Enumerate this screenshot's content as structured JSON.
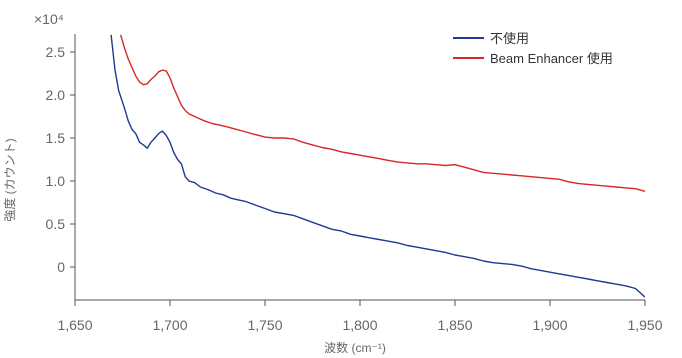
{
  "chart_data": {
    "type": "line",
    "title": "",
    "xlabel": "波数 (cm⁻¹)",
    "ylabel": "強度 (カウント)",
    "y_multiplier": "×10⁴",
    "xlim": [
      1650,
      1950
    ],
    "ylim": [
      -0.3,
      2.7
    ],
    "x_ticks": [
      1650,
      1700,
      1750,
      1800,
      1850,
      1900,
      1950
    ],
    "x_tick_labels": [
      "1,650",
      "1,700",
      "1,750",
      "1,800",
      "1,850",
      "1,900",
      "1,950"
    ],
    "y_ticks": [
      0,
      0.5,
      1.0,
      1.5,
      2.0,
      2.5
    ],
    "y_tick_labels": [
      "0",
      "0.5",
      "1.0",
      "1.5",
      "2.0",
      "2.5"
    ],
    "legend_position": "top-right",
    "grid": false,
    "series": [
      {
        "name": "不使用",
        "color": "#1f3a93",
        "points": [
          [
            1669,
            2.7
          ],
          [
            1671,
            2.3
          ],
          [
            1673,
            2.05
          ],
          [
            1676,
            1.85
          ],
          [
            1678,
            1.7
          ],
          [
            1680,
            1.6
          ],
          [
            1682,
            1.55
          ],
          [
            1684,
            1.45
          ],
          [
            1686,
            1.42
          ],
          [
            1688,
            1.38
          ],
          [
            1690,
            1.45
          ],
          [
            1692,
            1.5
          ],
          [
            1694,
            1.55
          ],
          [
            1696,
            1.58
          ],
          [
            1698,
            1.53
          ],
          [
            1700,
            1.45
          ],
          [
            1702,
            1.33
          ],
          [
            1704,
            1.25
          ],
          [
            1706,
            1.2
          ],
          [
            1708,
            1.05
          ],
          [
            1710,
            1.0
          ],
          [
            1713,
            0.98
          ],
          [
            1716,
            0.93
          ],
          [
            1720,
            0.9
          ],
          [
            1724,
            0.86
          ],
          [
            1728,
            0.84
          ],
          [
            1732,
            0.8
          ],
          [
            1736,
            0.78
          ],
          [
            1740,
            0.76
          ],
          [
            1745,
            0.72
          ],
          [
            1750,
            0.68
          ],
          [
            1755,
            0.64
          ],
          [
            1760,
            0.62
          ],
          [
            1765,
            0.6
          ],
          [
            1770,
            0.56
          ],
          [
            1775,
            0.52
          ],
          [
            1780,
            0.48
          ],
          [
            1785,
            0.44
          ],
          [
            1790,
            0.42
          ],
          [
            1795,
            0.38
          ],
          [
            1800,
            0.36
          ],
          [
            1805,
            0.34
          ],
          [
            1810,
            0.32
          ],
          [
            1815,
            0.3
          ],
          [
            1820,
            0.28
          ],
          [
            1825,
            0.25
          ],
          [
            1830,
            0.23
          ],
          [
            1835,
            0.21
          ],
          [
            1840,
            0.19
          ],
          [
            1845,
            0.17
          ],
          [
            1850,
            0.14
          ],
          [
            1855,
            0.12
          ],
          [
            1860,
            0.1
          ],
          [
            1865,
            0.07
          ],
          [
            1870,
            0.05
          ],
          [
            1875,
            0.04
          ],
          [
            1880,
            0.03
          ],
          [
            1885,
            0.01
          ],
          [
            1890,
            -0.02
          ],
          [
            1895,
            -0.04
          ],
          [
            1900,
            -0.06
          ],
          [
            1905,
            -0.08
          ],
          [
            1910,
            -0.1
          ],
          [
            1915,
            -0.12
          ],
          [
            1920,
            -0.14
          ],
          [
            1925,
            -0.16
          ],
          [
            1930,
            -0.18
          ],
          [
            1935,
            -0.2
          ],
          [
            1940,
            -0.22
          ],
          [
            1945,
            -0.25
          ],
          [
            1950,
            -0.35
          ]
        ]
      },
      {
        "name": "Beam Enhancer 使用",
        "color": "#d62728",
        "points": [
          [
            1674,
            2.7
          ],
          [
            1676,
            2.55
          ],
          [
            1678,
            2.42
          ],
          [
            1680,
            2.32
          ],
          [
            1682,
            2.22
          ],
          [
            1684,
            2.15
          ],
          [
            1686,
            2.12
          ],
          [
            1688,
            2.13
          ],
          [
            1690,
            2.18
          ],
          [
            1692,
            2.22
          ],
          [
            1694,
            2.27
          ],
          [
            1696,
            2.29
          ],
          [
            1698,
            2.28
          ],
          [
            1700,
            2.2
          ],
          [
            1702,
            2.08
          ],
          [
            1704,
            1.98
          ],
          [
            1706,
            1.88
          ],
          [
            1708,
            1.82
          ],
          [
            1710,
            1.78
          ],
          [
            1714,
            1.74
          ],
          [
            1718,
            1.7
          ],
          [
            1722,
            1.67
          ],
          [
            1726,
            1.65
          ],
          [
            1730,
            1.63
          ],
          [
            1735,
            1.6
          ],
          [
            1740,
            1.57
          ],
          [
            1745,
            1.54
          ],
          [
            1750,
            1.51
          ],
          [
            1755,
            1.5
          ],
          [
            1760,
            1.5
          ],
          [
            1765,
            1.49
          ],
          [
            1770,
            1.45
          ],
          [
            1775,
            1.42
          ],
          [
            1780,
            1.39
          ],
          [
            1785,
            1.37
          ],
          [
            1790,
            1.34
          ],
          [
            1795,
            1.32
          ],
          [
            1800,
            1.3
          ],
          [
            1805,
            1.28
          ],
          [
            1810,
            1.26
          ],
          [
            1815,
            1.24
          ],
          [
            1820,
            1.22
          ],
          [
            1825,
            1.21
          ],
          [
            1830,
            1.2
          ],
          [
            1835,
            1.2
          ],
          [
            1840,
            1.19
          ],
          [
            1845,
            1.18
          ],
          [
            1850,
            1.19
          ],
          [
            1855,
            1.16
          ],
          [
            1860,
            1.13
          ],
          [
            1865,
            1.1
          ],
          [
            1870,
            1.09
          ],
          [
            1875,
            1.08
          ],
          [
            1880,
            1.07
          ],
          [
            1885,
            1.06
          ],
          [
            1890,
            1.05
          ],
          [
            1895,
            1.04
          ],
          [
            1900,
            1.03
          ],
          [
            1905,
            1.02
          ],
          [
            1910,
            0.99
          ],
          [
            1915,
            0.97
          ],
          [
            1920,
            0.96
          ],
          [
            1925,
            0.95
          ],
          [
            1930,
            0.94
          ],
          [
            1935,
            0.93
          ],
          [
            1940,
            0.92
          ],
          [
            1945,
            0.91
          ],
          [
            1950,
            0.88
          ]
        ]
      }
    ]
  }
}
